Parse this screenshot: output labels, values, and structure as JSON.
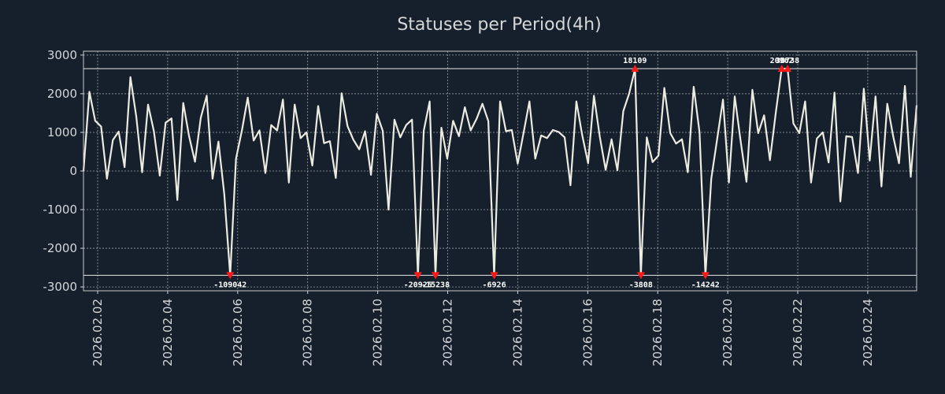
{
  "chart_data": {
    "type": "line",
    "title": "Statuses per Period(4h)",
    "xlabel": "",
    "ylabel": "",
    "ylim": [
      -3100,
      3100
    ],
    "grid": true,
    "display_clip": [
      -2700,
      2650
    ],
    "x_tick_labels": [
      "2026.02.02",
      "2026.02.04",
      "2026.02.06",
      "2026.02.08",
      "2026.02.10",
      "2026.02.12",
      "2026.02.14",
      "2026.02.16",
      "2026.02.18",
      "2026.02.20",
      "2026.02.22",
      "2026.02.24"
    ],
    "y_ticks": [
      3000,
      2000,
      1000,
      0,
      -1000,
      -2000,
      -3000
    ],
    "y_tick_labels": [
      "3000",
      "2000",
      "1000",
      "0",
      "-1000",
      "-2000",
      "-3000"
    ],
    "values": [
      0,
      2050,
      1300,
      1150,
      -200,
      800,
      1020,
      100,
      2430,
      1400,
      -30,
      1720,
      1030,
      -120,
      1250,
      1360,
      -750,
      1760,
      900,
      240,
      1380,
      1950,
      -200,
      760,
      -600,
      -2700,
      320,
      1050,
      1900,
      790,
      1050,
      -50,
      1190,
      1050,
      1850,
      -300,
      1720,
      850,
      1000,
      140,
      1680,
      720,
      770,
      -180,
      2010,
      1160,
      810,
      560,
      1030,
      -100,
      1480,
      1040,
      -1000,
      1330,
      870,
      1190,
      1330,
      -2700,
      1040,
      1800,
      -2700,
      1120,
      320,
      1300,
      900,
      1650,
      1050,
      1350,
      1740,
      1290,
      -2700,
      1800,
      1030,
      1060,
      190,
      980,
      1800,
      320,
      920,
      850,
      1060,
      1010,
      870,
      -370,
      1800,
      930,
      200,
      1950,
      880,
      30,
      820,
      20,
      1550,
      2000,
      2650,
      -2700,
      870,
      230,
      400,
      2150,
      980,
      710,
      820,
      -30,
      2180,
      1000,
      -2700,
      -200,
      830,
      1850,
      -300,
      1930,
      770,
      -280,
      2100,
      980,
      1440,
      280,
      1520,
      2650,
      2650,
      1230,
      980,
      1800,
      -300,
      840,
      1000,
      220,
      2030,
      -790,
      900,
      880,
      -50,
      2130,
      270,
      1930,
      -400,
      1740,
      900,
      200,
      2200,
      -150,
      1700
    ],
    "annotations": [
      {
        "index": 25,
        "label": "-109042",
        "side": "low"
      },
      {
        "index": 57,
        "label": "-20925",
        "side": "low"
      },
      {
        "index": 60,
        "label": "-15238",
        "side": "low"
      },
      {
        "index": 70,
        "label": "-6926",
        "side": "low"
      },
      {
        "index": 94,
        "label": "18109",
        "side": "high"
      },
      {
        "index": 95,
        "label": "-3808",
        "side": "low"
      },
      {
        "index": 106,
        "label": "-14242",
        "side": "low"
      },
      {
        "index": 119,
        "label": "20962",
        "side": "high"
      },
      {
        "index": 120,
        "label": "38738",
        "side": "high"
      }
    ],
    "colors": {
      "background": "#16202c",
      "line": "#ecebe0",
      "marker": "#ff1a1a",
      "text": "#d4d6d8",
      "grid": "#c8c8c8"
    }
  }
}
